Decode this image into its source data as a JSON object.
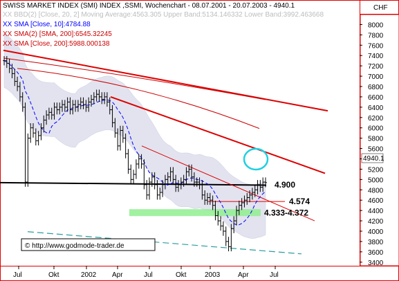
{
  "chart_data": {
    "type": "candlestick",
    "title": "SWISS MARKET INDEX (SMI) INDEX ,SSMI, Wochenchart - 08.07.2001 - 20.07.2003 - 4940.1",
    "currency": "CHF",
    "legend": [
      {
        "text": "XX BBD(2) [Close, 20, 2] Moving Average:4563.305 Upper Band:5134.146332 Lower Band:3992.463668",
        "color": "#c8c8c8"
      },
      {
        "text": "XX SMA [Close, 10]:4784.88",
        "color": "#0000ff"
      },
      {
        "text": "XX SMA(2) [SMA, 200]:6545.32245",
        "color": "#cc0000"
      },
      {
        "text": "XX SMA [Close, 200]:5988.000138",
        "color": "#cc0000"
      }
    ],
    "x_ticks": [
      "Jul",
      "Okt",
      "2002",
      "Apr",
      "Jul",
      "Okt",
      "2003",
      "Apr",
      "Jul"
    ],
    "y_ticks": [
      8000,
      7800,
      7600,
      7400,
      7200,
      7000,
      6800,
      6600,
      6400,
      6200,
      6000,
      5800,
      5600,
      5400,
      5200,
      5000,
      4800,
      4600,
      4400,
      4200,
      4000,
      3800,
      3600,
      3400
    ],
    "ylim": [
      3330,
      8180
    ],
    "last_price": "4940.1",
    "closes": [
      7300,
      7250,
      7150,
      7050,
      6900,
      6800,
      6600,
      6400,
      4950,
      5800,
      6000,
      5900,
      5750,
      5850,
      6000,
      6150,
      6250,
      6300,
      6250,
      6400,
      6350,
      6400,
      6450,
      6400,
      6500,
      6350,
      6450,
      6400,
      6450,
      6500,
      6450,
      6400,
      6500,
      6550,
      6600,
      6650,
      6600,
      6550,
      6600,
      6500,
      6350,
      6100,
      5900,
      5650,
      5950,
      5800,
      5500,
      5200,
      5000,
      5100,
      5300,
      5400,
      5300,
      4900,
      4700,
      4950,
      5050,
      4900,
      4700,
      4750,
      4900,
      5000,
      5050,
      5150,
      5000,
      4850,
      4900,
      4950,
      5000,
      5150,
      5200,
      5050,
      4950,
      4950,
      4900,
      4700,
      4600,
      4650,
      4600,
      4500,
      4300,
      4200,
      4100,
      4000,
      3800,
      3700,
      4050,
      4200,
      4400,
      4500,
      4550,
      4600,
      4650,
      4700,
      4750,
      4800,
      4900,
      4850,
      4950,
      4940
    ],
    "annotations": {
      "levels": [
        {
          "label": "4.900",
          "value": 4900
        },
        {
          "label": "4.574",
          "value": 4574
        },
        {
          "label": "4.333-4.372",
          "low": 4333,
          "high": 4372
        }
      ],
      "support_line_value": 4940
    },
    "watermark": "© http://www.godmode-trader.de"
  }
}
